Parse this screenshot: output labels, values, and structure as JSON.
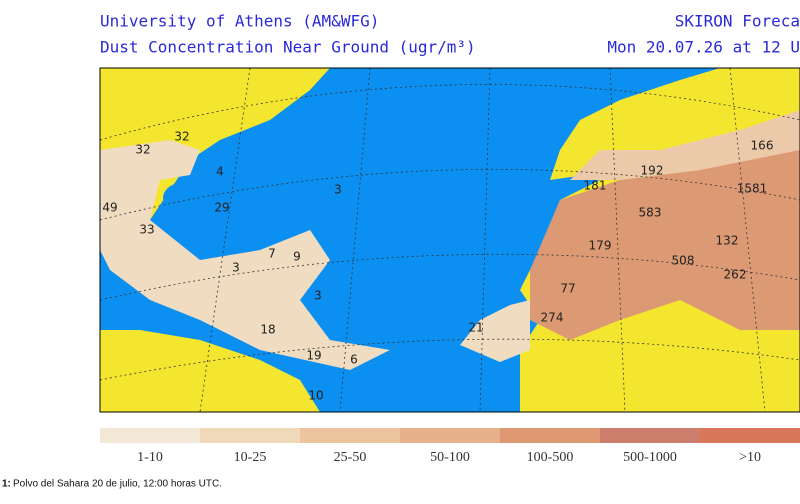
{
  "header": {
    "org": "University of Athens (AM&WFG)",
    "subtitle": "Dust Concentration Near Ground (ugr/m³)",
    "model": "SKIRON Foreca",
    "time": "Mon 20.07.26 at 12 U"
  },
  "map": {
    "labels": [
      "32",
      "32",
      "4",
      "49",
      "29",
      "33",
      "3",
      "7",
      "9",
      "3",
      "3",
      "18",
      "19",
      "6",
      "10",
      "21",
      "274",
      "77",
      "179",
      "583",
      "181",
      "192",
      "508",
      "132",
      "262",
      "1581",
      "166"
    ]
  },
  "legend": {
    "bins": [
      {
        "label": "1-10",
        "color": "#f3e7d6"
      },
      {
        "label": "10-25",
        "color": "#efd9b9"
      },
      {
        "label": "25-50",
        "color": "#ecc59f"
      },
      {
        "label": "50-100",
        "color": "#e5b08a"
      },
      {
        "label": "100-500",
        "color": "#de9872"
      },
      {
        "label": "500-1000",
        "color": "#cd7e6c"
      },
      {
        "label": ">10",
        "color": "#d9775a"
      }
    ]
  },
  "caption": {
    "number": "1:",
    "text": "Polvo del Sahara 20 de julio, 12:00 horas UTC."
  }
}
